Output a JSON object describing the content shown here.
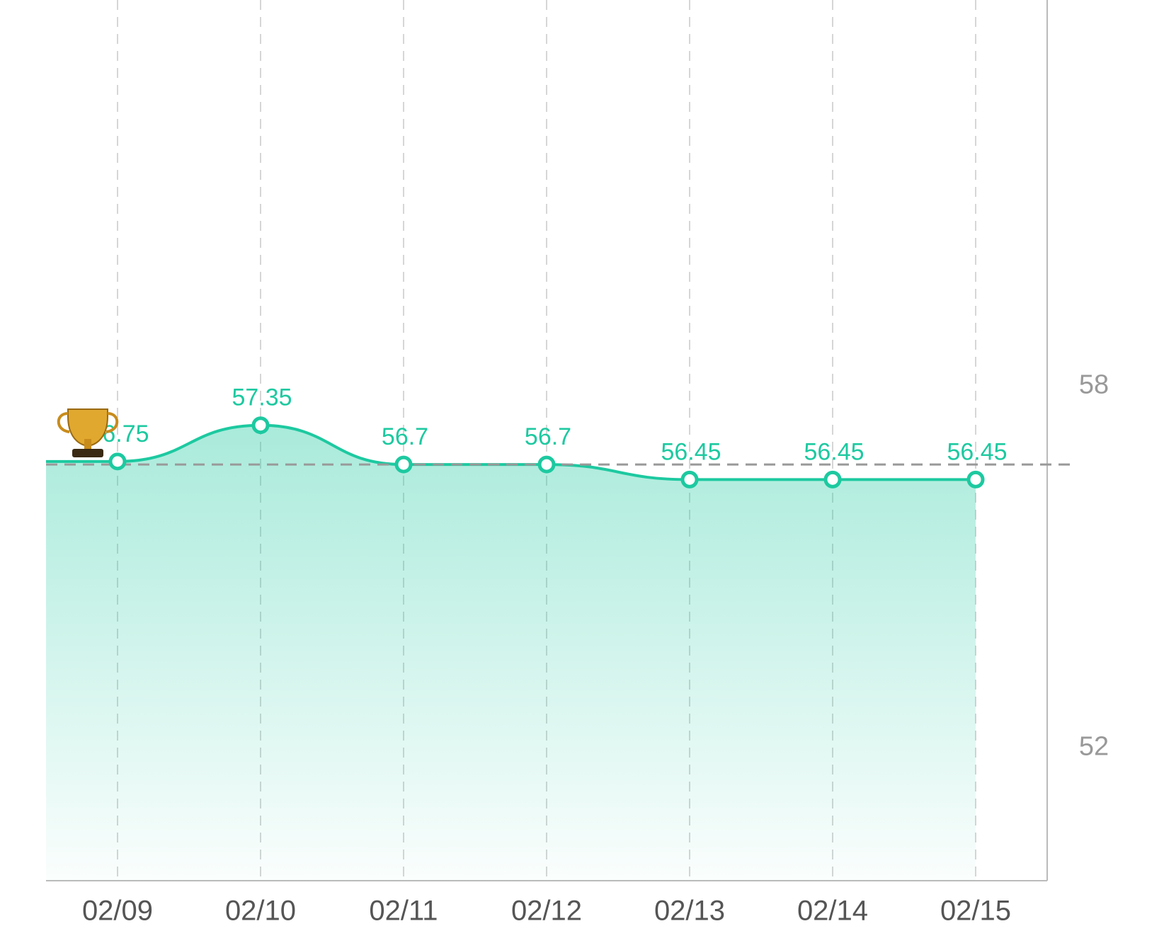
{
  "chart_data": {
    "type": "line",
    "categories": [
      "02/09",
      "02/10",
      "02/11",
      "02/12",
      "02/13",
      "02/14",
      "02/15"
    ],
    "series": [
      {
        "color": "#1dc9a0",
        "values": [
          56.75,
          57.35,
          56.7,
          56.7,
          56.45,
          56.45,
          56.45
        ]
      }
    ],
    "ylim": [
      49.8,
      64.4
    ],
    "yticks": [
      52,
      58
    ],
    "y_axis_side": "right",
    "reference_line": 56.7,
    "grid": "vertical-dashed"
  }
}
